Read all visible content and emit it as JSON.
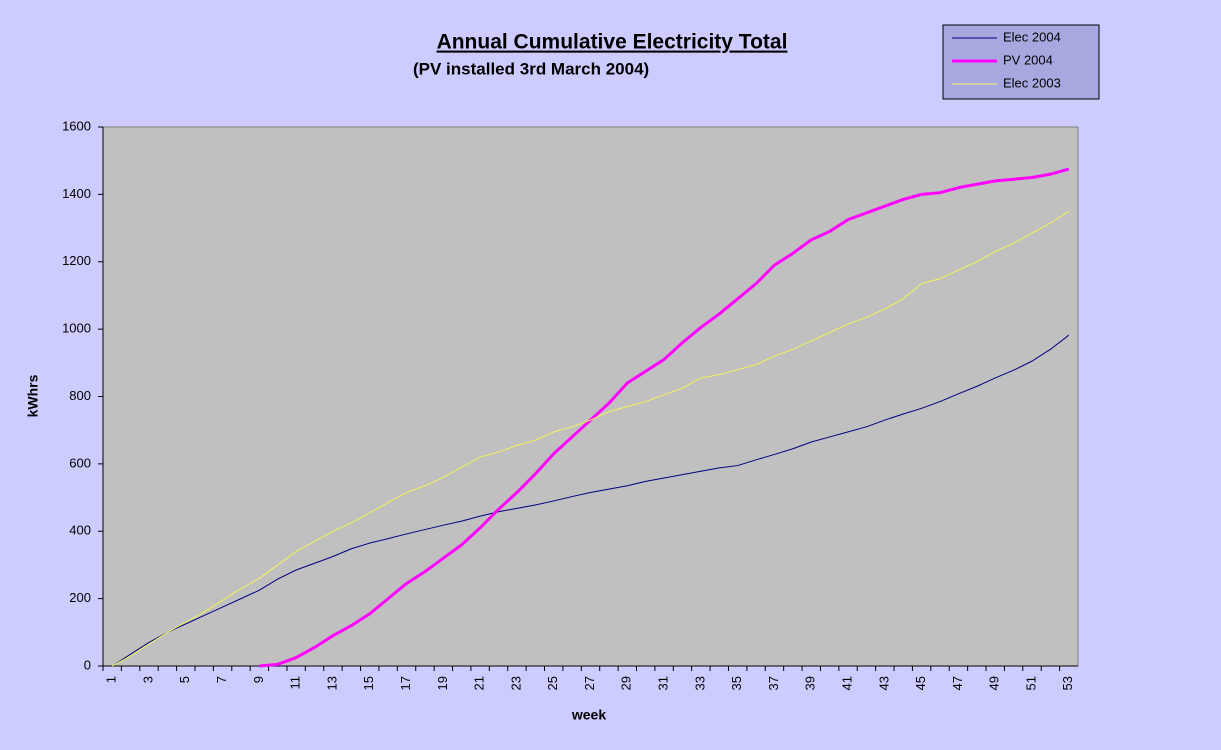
{
  "chart_data": {
    "type": "line",
    "title": "Annual Cumulative Electricity Total",
    "subtitle": "(PV installed 3rd March 2004)",
    "x_label": "week",
    "y_label": "kWhrs",
    "categories": [
      1,
      null,
      3,
      null,
      5,
      null,
      7,
      null,
      9,
      null,
      11,
      null,
      13,
      null,
      15,
      null,
      17,
      null,
      19,
      null,
      21,
      null,
      23,
      null,
      25,
      null,
      27,
      null,
      29,
      null,
      31,
      null,
      33,
      null,
      35,
      null,
      37,
      null,
      39,
      null,
      41,
      null,
      43,
      null,
      45,
      null,
      47,
      null,
      49,
      null,
      51,
      null,
      53
    ],
    "ylim": [
      0,
      1600
    ],
    "yticks": [
      0,
      200,
      400,
      600,
      800,
      1000,
      1200,
      1400,
      1600
    ],
    "legend": "top-right",
    "series": [
      {
        "name": "Elec 2004",
        "color": "#000080",
        "width": 1,
        "values": [
          0,
          35,
          70,
          100,
          125,
          150,
          175,
          200,
          225,
          258,
          285,
          305,
          325,
          348,
          365,
          378,
          392,
          405,
          418,
          430,
          445,
          458,
          468,
          478,
          490,
          503,
          515,
          525,
          535,
          548,
          558,
          568,
          578,
          588,
          595,
          612,
          628,
          645,
          665,
          680,
          695,
          710,
          730,
          748,
          765,
          785,
          808,
          830,
          855,
          878,
          905,
          940,
          982
        ]
      },
      {
        "name": "PV 2004",
        "color": "#ff00ff",
        "width": 3,
        "values": [
          null,
          null,
          null,
          null,
          null,
          null,
          null,
          null,
          0,
          5,
          25,
          55,
          90,
          120,
          155,
          200,
          245,
          280,
          320,
          360,
          410,
          465,
          515,
          570,
          630,
          680,
          730,
          780,
          840,
          875,
          910,
          960,
          1005,
          1045,
          1090,
          1135,
          1190,
          1225,
          1265,
          1290,
          1325,
          1345,
          1365,
          1385,
          1400,
          1405,
          1420,
          1430,
          1440,
          1445,
          1450,
          1460,
          1475
        ]
      },
      {
        "name": "Elec 2003",
        "color": "#f2f25a",
        "width": 1,
        "values": [
          0,
          30,
          65,
          100,
          130,
          160,
          195,
          230,
          260,
          300,
          340,
          370,
          400,
          425,
          455,
          485,
          515,
          535,
          560,
          590,
          620,
          635,
          655,
          670,
          695,
          710,
          730,
          755,
          770,
          785,
          805,
          825,
          855,
          865,
          880,
          895,
          920,
          940,
          965,
          990,
          1015,
          1035,
          1060,
          1090,
          1135,
          1150,
          1175,
          1200,
          1230,
          1255,
          1285,
          1315,
          1350
        ]
      }
    ]
  }
}
